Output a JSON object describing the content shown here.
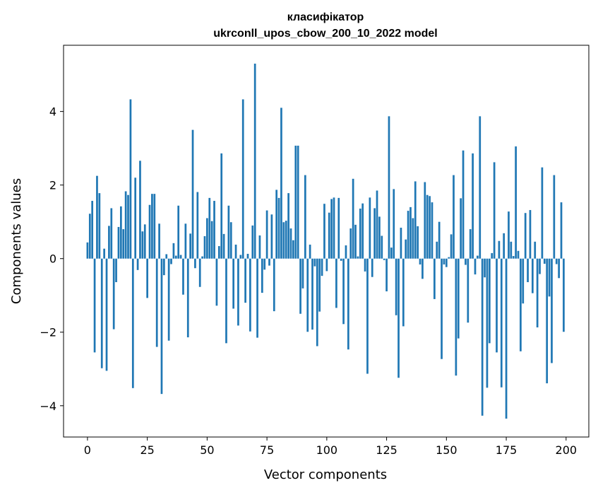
{
  "chart_data": {
    "type": "bar",
    "title": "класифікатор",
    "subtitle": "ukrconll_upos_cbow_200_10_2022 model",
    "xlabel": "Vector components",
    "ylabel": "Components values",
    "xlim": [
      -10,
      209.5
    ],
    "ylim": [
      -4.85,
      5.8
    ],
    "x_ticks": [
      0,
      25,
      50,
      75,
      100,
      125,
      150,
      175,
      200
    ],
    "y_ticks": [
      -4,
      -2,
      0,
      2,
      4
    ],
    "grid": false,
    "legend": "none",
    "bar_color": "#1f77b4",
    "x": [
      0,
      1,
      2,
      3,
      4,
      5,
      6,
      7,
      8,
      9,
      10,
      11,
      12,
      13,
      14,
      15,
      16,
      17,
      18,
      19,
      20,
      21,
      22,
      23,
      24,
      25,
      26,
      27,
      28,
      29,
      30,
      31,
      32,
      33,
      34,
      35,
      36,
      37,
      38,
      39,
      40,
      41,
      42,
      43,
      44,
      45,
      46,
      47,
      48,
      49,
      50,
      51,
      52,
      53,
      54,
      55,
      56,
      57,
      58,
      59,
      60,
      61,
      62,
      63,
      64,
      65,
      66,
      67,
      68,
      69,
      70,
      71,
      72,
      73,
      74,
      75,
      76,
      77,
      78,
      79,
      80,
      81,
      82,
      83,
      84,
      85,
      86,
      87,
      88,
      89,
      90,
      91,
      92,
      93,
      94,
      95,
      96,
      97,
      98,
      99,
      100,
      101,
      102,
      103,
      104,
      105,
      106,
      107,
      108,
      109,
      110,
      111,
      112,
      113,
      114,
      115,
      116,
      117,
      118,
      119,
      120,
      121,
      122,
      123,
      124,
      125,
      126,
      127,
      128,
      129,
      130,
      131,
      132,
      133,
      134,
      135,
      136,
      137,
      138,
      139,
      140,
      141,
      142,
      143,
      144,
      145,
      146,
      147,
      148,
      149,
      150,
      151,
      152,
      153,
      154,
      155,
      156,
      157,
      158,
      159,
      160,
      161,
      162,
      163,
      164,
      165,
      166,
      167,
      168,
      169,
      170,
      171,
      172,
      173,
      174,
      175,
      176,
      177,
      178,
      179,
      180,
      181,
      182,
      183,
      184,
      185,
      186,
      187,
      188,
      189,
      190,
      191,
      192,
      193,
      194,
      195,
      196,
      197,
      198,
      199
    ],
    "values": [
      0.44,
      1.22,
      1.57,
      -2.55,
      2.25,
      1.78,
      -2.98,
      0.27,
      -3.05,
      0.89,
      1.37,
      -1.92,
      -0.64,
      0.86,
      1.42,
      0.8,
      1.83,
      1.73,
      4.33,
      -3.52,
      2.2,
      -0.31,
      2.66,
      0.74,
      0.93,
      -1.07,
      1.46,
      1.76,
      1.76,
      -2.4,
      0.95,
      -3.68,
      -0.45,
      0.12,
      -2.23,
      -0.15,
      0.42,
      0.08,
      1.44,
      0.1,
      -0.98,
      0.95,
      -2.14,
      0.68,
      3.5,
      -0.26,
      1.81,
      -0.77,
      0.06,
      0.61,
      1.1,
      1.65,
      1.02,
      1.57,
      -1.28,
      0.34,
      2.86,
      0.67,
      -2.3,
      1.44,
      0.99,
      -1.36,
      0.38,
      -1.82,
      0.1,
      4.33,
      -1.2,
      0.13,
      -1.98,
      0.9,
      5.3,
      -2.15,
      0.63,
      -0.93,
      -0.3,
      1.31,
      -0.19,
      1.2,
      -1.43,
      1.87,
      1.65,
      4.1,
      0.99,
      1.03,
      1.78,
      0.82,
      0.5,
      3.07,
      3.07,
      -1.5,
      -0.81,
      2.27,
      -1.99,
      0.38,
      -1.93,
      -0.21,
      -2.38,
      -1.44,
      -0.47,
      1.49,
      -0.34,
      1.25,
      1.62,
      1.66,
      -1.34,
      1.65,
      -0.06,
      -1.78,
      0.36,
      -2.47,
      0.82,
      2.17,
      0.92,
      0.06,
      1.36,
      1.5,
      -0.35,
      -3.13,
      1.66,
      -0.5,
      1.37,
      1.85,
      1.14,
      0.62,
      -0.04,
      -0.89,
      3.87,
      0.3,
      1.89,
      -1.54,
      -3.24,
      0.84,
      -1.84,
      0.52,
      1.3,
      1.4,
      1.1,
      2.1,
      0.88,
      -0.16,
      -0.55,
      2.08,
      1.73,
      1.7,
      1.53,
      -1.1,
      0.46,
      1.0,
      -2.73,
      -0.16,
      -0.23,
      0.04,
      0.66,
      2.27,
      -3.18,
      -2.17,
      1.64,
      2.94,
      -0.17,
      -1.74,
      0.8,
      2.86,
      -0.43,
      0.08,
      3.87,
      -4.27,
      -0.51,
      -3.51,
      -2.3,
      0.15,
      2.62,
      -2.55,
      0.48,
      -3.5,
      0.69,
      -4.35,
      1.28,
      0.46,
      0.07,
      3.05,
      0.21,
      -2.52,
      -1.22,
      1.24,
      -0.64,
      1.32,
      -0.94,
      0.46,
      -1.87,
      -0.42,
      2.48,
      -0.14,
      -3.39,
      -1.03,
      -2.84,
      2.27,
      -0.15,
      -0.53,
      1.53,
      -1.99
    ]
  }
}
